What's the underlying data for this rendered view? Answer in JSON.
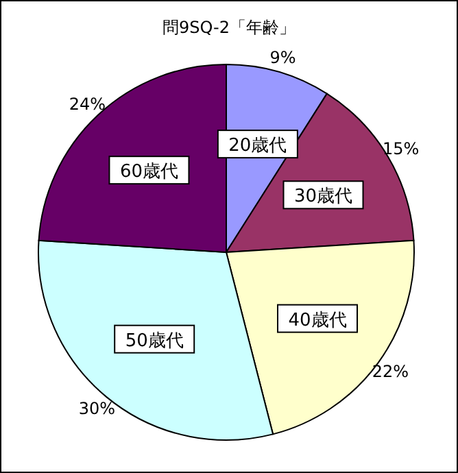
{
  "chart_data": {
    "type": "pie",
    "title": "問9SQ-2「年齢」",
    "categories": [
      "20歳代",
      "30歳代",
      "40歳代",
      "50歳代",
      "60歳代"
    ],
    "values": [
      9,
      15,
      22,
      30,
      24
    ],
    "value_labels": [
      "9%",
      "15%",
      "22%",
      "30%",
      "24%"
    ],
    "colors": [
      "#9999ff",
      "#993366",
      "#ffffcc",
      "#ccffff",
      "#660066"
    ]
  }
}
